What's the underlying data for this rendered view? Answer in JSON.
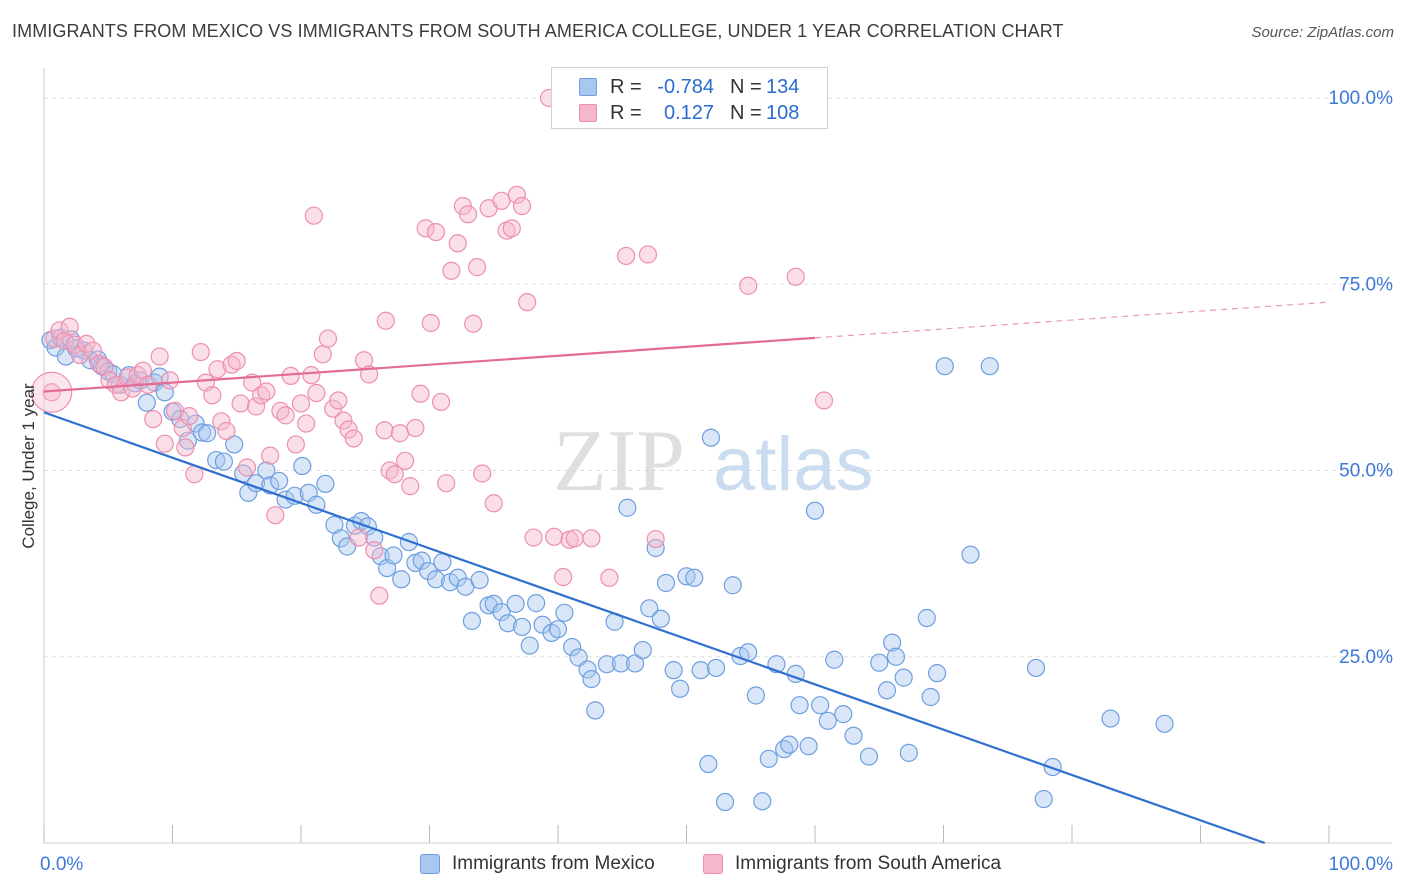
{
  "header": {
    "title": "IMMIGRANTS FROM MEXICO VS IMMIGRANTS FROM SOUTH AMERICA COLLEGE, UNDER 1 YEAR CORRELATION CHART",
    "source": "Source: ZipAtlas.com"
  },
  "watermark": {
    "zip": "ZIP",
    "atlas": "atlas"
  },
  "legend": {
    "rows": [
      {
        "r_label": "R =",
        "r_value": "-0.784",
        "n_label": "N =",
        "n_value": "134"
      },
      {
        "r_label": "R =",
        "r_value": "0.127",
        "n_label": "N =",
        "n_value": "108"
      }
    ]
  },
  "bottom_legend": {
    "series1": "Immigrants from Mexico",
    "series2": "Immigrants from South America"
  },
  "colors": {
    "blue_fill": "#a9c8f0",
    "blue_stroke": "#6f9fe0",
    "blue_line": "#2f6fd0",
    "pink_fill": "#f5b8cb",
    "pink_stroke": "#ee8fae",
    "pink_line": "#e36c94",
    "axis_text": "#3c78d8",
    "grid": "#dddddd"
  },
  "chart_data": {
    "type": "scatter",
    "title": "IMMIGRANTS FROM MEXICO VS IMMIGRANTS FROM SOUTH AMERICA COLLEGE, UNDER 1 YEAR CORRELATION CHART",
    "xlabel": "",
    "ylabel": "College, Under 1 year",
    "xlim": [
      0,
      100
    ],
    "ylim": [
      0,
      100
    ],
    "x_tick_labels": [
      "0.0%",
      "100.0%"
    ],
    "y_tick_values": [
      25,
      50,
      75,
      100
    ],
    "y_tick_labels": [
      "25.0%",
      "50.0%",
      "75.0%",
      "100.0%"
    ],
    "grid": true,
    "series": [
      {
        "name": "Immigrants from Mexico",
        "color": "#a9c8f0",
        "r": -0.784,
        "n": 134,
        "trend": {
          "x": [
            0,
            95
          ],
          "y": [
            57.8,
            0
          ]
        },
        "points": [
          [
            0.5,
            67.5
          ],
          [
            0.9,
            66.5
          ],
          [
            1.3,
            67.8
          ],
          [
            1.7,
            65.3
          ],
          [
            2.1,
            67.6
          ],
          [
            2.5,
            66.4
          ],
          [
            3.1,
            66.1
          ],
          [
            3.6,
            64.8
          ],
          [
            4.2,
            64.9
          ],
          [
            4.5,
            64.0
          ],
          [
            5.0,
            63.3
          ],
          [
            5.4,
            62.9
          ],
          [
            5.9,
            61.5
          ],
          [
            6.6,
            62.8
          ],
          [
            7.1,
            61.7
          ],
          [
            7.5,
            62.1
          ],
          [
            8.0,
            59.1
          ],
          [
            8.6,
            61.8
          ],
          [
            9.0,
            62.6
          ],
          [
            9.4,
            60.5
          ],
          [
            10.0,
            57.9
          ],
          [
            10.6,
            56.9
          ],
          [
            11.2,
            54.0
          ],
          [
            11.8,
            56.3
          ],
          [
            12.3,
            55.1
          ],
          [
            12.7,
            55.0
          ],
          [
            13.4,
            51.4
          ],
          [
            14.0,
            51.2
          ],
          [
            14.8,
            53.5
          ],
          [
            15.5,
            49.6
          ],
          [
            15.9,
            47.0
          ],
          [
            16.5,
            48.3
          ],
          [
            17.3,
            50.0
          ],
          [
            17.6,
            48.0
          ],
          [
            18.3,
            48.6
          ],
          [
            18.8,
            46.1
          ],
          [
            19.5,
            46.6
          ],
          [
            20.1,
            50.6
          ],
          [
            20.6,
            47.0
          ],
          [
            21.2,
            45.4
          ],
          [
            21.9,
            48.2
          ],
          [
            22.6,
            42.7
          ],
          [
            23.1,
            40.9
          ],
          [
            23.6,
            39.8
          ],
          [
            24.2,
            42.6
          ],
          [
            24.7,
            43.2
          ],
          [
            25.2,
            42.5
          ],
          [
            25.7,
            41.0
          ],
          [
            26.2,
            38.5
          ],
          [
            26.7,
            36.9
          ],
          [
            27.2,
            38.6
          ],
          [
            27.8,
            35.4
          ],
          [
            28.4,
            40.4
          ],
          [
            28.9,
            37.6
          ],
          [
            29.4,
            37.9
          ],
          [
            29.9,
            36.5
          ],
          [
            30.5,
            35.4
          ],
          [
            31.0,
            37.7
          ],
          [
            31.6,
            35.0
          ],
          [
            32.2,
            35.6
          ],
          [
            32.8,
            34.4
          ],
          [
            33.3,
            29.8
          ],
          [
            33.9,
            35.3
          ],
          [
            34.6,
            31.9
          ],
          [
            35.0,
            32.1
          ],
          [
            35.6,
            31.0
          ],
          [
            36.1,
            29.5
          ],
          [
            36.7,
            32.1
          ],
          [
            37.2,
            29.0
          ],
          [
            37.8,
            26.5
          ],
          [
            38.3,
            32.2
          ],
          [
            38.8,
            29.3
          ],
          [
            39.5,
            28.2
          ],
          [
            40.0,
            28.7
          ],
          [
            40.5,
            30.9
          ],
          [
            41.1,
            26.3
          ],
          [
            41.6,
            24.9
          ],
          [
            42.3,
            23.3
          ],
          [
            42.6,
            22.0
          ],
          [
            42.9,
            17.8
          ],
          [
            43.8,
            24.0
          ],
          [
            44.4,
            29.7
          ],
          [
            44.9,
            24.1
          ],
          [
            45.4,
            45.0
          ],
          [
            46.0,
            24.1
          ],
          [
            46.6,
            25.9
          ],
          [
            47.1,
            31.5
          ],
          [
            47.6,
            39.6
          ],
          [
            48.0,
            30.1
          ],
          [
            48.4,
            34.9
          ],
          [
            49.0,
            23.2
          ],
          [
            49.5,
            20.7
          ],
          [
            50.0,
            35.8
          ],
          [
            50.6,
            35.6
          ],
          [
            51.1,
            23.2
          ],
          [
            51.7,
            10.6
          ],
          [
            51.9,
            54.4
          ],
          [
            52.3,
            23.5
          ],
          [
            53.0,
            5.5
          ],
          [
            53.6,
            34.6
          ],
          [
            54.2,
            25.1
          ],
          [
            54.8,
            25.6
          ],
          [
            55.4,
            19.8
          ],
          [
            55.9,
            5.6
          ],
          [
            56.4,
            11.3
          ],
          [
            57.0,
            24.0
          ],
          [
            57.6,
            12.6
          ],
          [
            58.0,
            13.2
          ],
          [
            58.5,
            22.7
          ],
          [
            58.8,
            18.5
          ],
          [
            59.5,
            13.0
          ],
          [
            60.0,
            44.6
          ],
          [
            60.4,
            18.5
          ],
          [
            61.0,
            16.4
          ],
          [
            61.5,
            24.6
          ],
          [
            62.2,
            17.3
          ],
          [
            63.0,
            14.4
          ],
          [
            64.2,
            11.6
          ],
          [
            65.0,
            24.2
          ],
          [
            65.6,
            20.5
          ],
          [
            66.0,
            26.9
          ],
          [
            66.3,
            25.0
          ],
          [
            66.9,
            22.2
          ],
          [
            67.3,
            12.1
          ],
          [
            68.7,
            30.2
          ],
          [
            69.0,
            19.6
          ],
          [
            69.5,
            22.8
          ],
          [
            70.1,
            64.0
          ],
          [
            72.1,
            38.7
          ],
          [
            73.6,
            64.0
          ],
          [
            77.2,
            23.5
          ],
          [
            77.8,
            5.9
          ],
          [
            78.5,
            10.2
          ],
          [
            83.0,
            16.7
          ],
          [
            87.2,
            16.0
          ]
        ]
      },
      {
        "name": "Immigrants from South America",
        "color": "#f5b8cb",
        "r": 0.127,
        "n": 108,
        "trend": {
          "x": [
            0,
            60
          ],
          "y": [
            60.6,
            67.8
          ]
        },
        "trend_dashed": {
          "x": [
            60,
            100
          ],
          "y": [
            67.8,
            72.6
          ]
        },
        "points": [
          [
            0.6,
            60.5
          ],
          [
            0.8,
            67.7
          ],
          [
            1.2,
            68.8
          ],
          [
            1.6,
            67.4
          ],
          [
            2.0,
            69.3
          ],
          [
            2.4,
            66.9
          ],
          [
            2.8,
            65.5
          ],
          [
            3.3,
            67.0
          ],
          [
            3.8,
            66.1
          ],
          [
            4.3,
            64.3
          ],
          [
            4.7,
            63.9
          ],
          [
            5.1,
            62.1
          ],
          [
            5.6,
            61.5
          ],
          [
            6.0,
            60.5
          ],
          [
            6.5,
            62.5
          ],
          [
            6.9,
            61.0
          ],
          [
            7.3,
            62.8
          ],
          [
            7.7,
            63.4
          ],
          [
            8.1,
            61.5
          ],
          [
            8.5,
            56.9
          ],
          [
            9.0,
            65.3
          ],
          [
            9.4,
            53.6
          ],
          [
            9.8,
            62.1
          ],
          [
            10.2,
            58.0
          ],
          [
            10.8,
            55.7
          ],
          [
            11.3,
            57.3
          ],
          [
            11.7,
            49.5
          ],
          [
            12.2,
            65.9
          ],
          [
            12.6,
            61.8
          ],
          [
            13.1,
            60.1
          ],
          [
            13.5,
            63.6
          ],
          [
            13.8,
            56.6
          ],
          [
            14.2,
            55.3
          ],
          [
            14.6,
            64.2
          ],
          [
            15.0,
            64.7
          ],
          [
            15.3,
            59.0
          ],
          [
            15.8,
            50.4
          ],
          [
            16.2,
            61.8
          ],
          [
            16.5,
            58.6
          ],
          [
            16.9,
            60.1
          ],
          [
            17.3,
            60.6
          ],
          [
            17.6,
            52.0
          ],
          [
            18.0,
            44.0
          ],
          [
            18.4,
            58.0
          ],
          [
            18.8,
            57.4
          ],
          [
            19.2,
            62.7
          ],
          [
            19.6,
            53.5
          ],
          [
            20.0,
            59.0
          ],
          [
            20.4,
            56.3
          ],
          [
            20.8,
            62.8
          ],
          [
            21.2,
            60.4
          ],
          [
            21.7,
            65.6
          ],
          [
            22.1,
            67.7
          ],
          [
            22.5,
            58.3
          ],
          [
            22.9,
            59.4
          ],
          [
            23.3,
            56.7
          ],
          [
            23.7,
            55.5
          ],
          [
            24.1,
            54.3
          ],
          [
            24.5,
            41.0
          ],
          [
            24.9,
            64.8
          ],
          [
            25.3,
            62.9
          ],
          [
            25.7,
            39.3
          ],
          [
            26.1,
            33.2
          ],
          [
            26.5,
            55.4
          ],
          [
            26.9,
            50.0
          ],
          [
            27.3,
            49.5
          ],
          [
            27.7,
            55.0
          ],
          [
            28.1,
            51.3
          ],
          [
            28.5,
            47.9
          ],
          [
            28.9,
            55.7
          ],
          [
            29.3,
            60.3
          ],
          [
            29.7,
            82.5
          ],
          [
            30.1,
            69.8
          ],
          [
            30.5,
            82.0
          ],
          [
            30.9,
            59.2
          ],
          [
            31.3,
            48.3
          ],
          [
            31.7,
            76.8
          ],
          [
            32.2,
            80.5
          ],
          [
            32.6,
            85.5
          ],
          [
            33.0,
            84.4
          ],
          [
            33.4,
            69.7
          ],
          [
            33.7,
            77.3
          ],
          [
            34.1,
            49.6
          ],
          [
            34.6,
            85.2
          ],
          [
            35.0,
            45.6
          ],
          [
            35.6,
            86.2
          ],
          [
            36.0,
            82.2
          ],
          [
            36.4,
            82.5
          ],
          [
            36.8,
            87.0
          ],
          [
            37.2,
            85.5
          ],
          [
            37.6,
            72.6
          ],
          [
            38.1,
            41.0
          ],
          [
            39.3,
            100.0
          ],
          [
            39.7,
            41.1
          ],
          [
            40.4,
            35.7
          ],
          [
            40.9,
            40.7
          ],
          [
            41.3,
            40.9
          ],
          [
            42.6,
            40.9
          ],
          [
            44.0,
            35.6
          ],
          [
            45.3,
            78.8
          ],
          [
            47.0,
            79.0
          ],
          [
            47.6,
            40.8
          ],
          [
            54.8,
            74.8
          ],
          [
            58.5,
            76.0
          ],
          [
            60.7,
            59.4
          ],
          [
            11.0,
            53.1
          ],
          [
            21.0,
            84.2
          ],
          [
            26.6,
            70.1
          ]
        ]
      }
    ]
  }
}
